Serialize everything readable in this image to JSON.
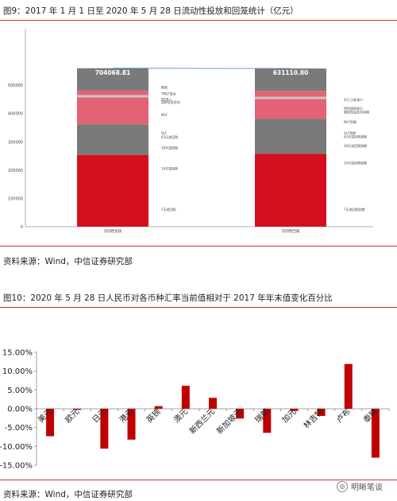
{
  "fig9": {
    "title": "图9：2017 年 1 月 1 日至 2020 年 5 月 28 日流动性投放和回笼统计（亿元）",
    "source": "资料来源：Wind，中信证券研究部"
  },
  "fig10": {
    "title": "图10：2020 年 5 月 28 日人民币对各币种汇率当前值相对于 2017 年年末值变化百分比",
    "source": "资料来源：Wind，中信证券研究部"
  },
  "watermark": {
    "text": "明晰笔谈",
    "icon": "wechat-icon"
  },
  "chart_data": [
    {
      "type": "bar",
      "stacked": true,
      "ylim": [
        0,
        700000
      ],
      "yticks": [
        "0",
        "100000",
        "200000",
        "300000",
        "400000",
        "500000"
      ],
      "ytick_values": [
        0,
        100000,
        200000,
        300000,
        400000,
        500000
      ],
      "categories": [
        "流动性投放",
        "流动性回笼"
      ],
      "totals": [
        "704068.81",
        "631110.80"
      ],
      "total_values": [
        704068.81,
        631110.8
      ],
      "series_colors": [
        "#d4101e",
        "#7a7a7a",
        "#e46275",
        "#c8c8c8",
        "#e46275",
        "#7a7a7a"
      ],
      "segments": [
        [
          254000,
          108000,
          95000,
          8000,
          16000,
          79000
        ],
        [
          258000,
          123000,
          70000,
          8000,
          21000,
          79000
        ]
      ],
      "left_labels": [
        {
          "text": "7天逆回购",
          "y": 60000
        },
        {
          "text": "14天逆回购",
          "y": 205000
        },
        {
          "text": "28天逆回购",
          "y": 278000
        },
        {
          "text": "63天逆回购",
          "y": 316000
        },
        {
          "text": "SLF",
          "y": 330000
        },
        {
          "text": "MLF",
          "y": 395000
        },
        {
          "text": "国库现金定存",
          "y": 440000
        },
        {
          "text": "SD准入",
          "y": 450000
        },
        {
          "text": "TMLF流动",
          "y": 470000
        },
        {
          "text": "降准",
          "y": 492000
        }
      ],
      "right_labels": [
        {
          "text": "7天逆回购到期",
          "y": 60000
        },
        {
          "text": "14天逆回购到期",
          "y": 225000
        },
        {
          "text": "28天逆回购到期",
          "y": 285000
        },
        {
          "text": "63天逆回购到期",
          "y": 318000
        },
        {
          "text": "SLF到期",
          "y": 330000
        },
        {
          "text": "MLF到期",
          "y": 370000
        },
        {
          "text": "国库现金定存到期",
          "y": 405000
        },
        {
          "text": "特别国债发行",
          "y": 417000
        },
        {
          "text": "外汇占款减少",
          "y": 448000
        }
      ]
    },
    {
      "type": "bar",
      "ylim": [
        -15,
        15
      ],
      "yticks": [
        "15.00%",
        "10.00%",
        "5.00%",
        "0.00%",
        "-5.00%",
        "-10.00%",
        "-15.00%"
      ],
      "ytick_values": [
        15,
        10,
        5,
        0,
        -5,
        -10,
        -15
      ],
      "categories": [
        "美元",
        "欧元",
        "日元",
        "港元",
        "英镑",
        "澳元",
        "新西兰元",
        "新加坡元",
        "瑞郎",
        "加元",
        "林吉特",
        "卢布",
        "泰铢"
      ],
      "values": [
        -7.3,
        -0.3,
        -10.6,
        -8.2,
        0.7,
        6.1,
        2.9,
        -2.6,
        -6.4,
        -0.6,
        -1.9,
        11.9,
        -13.0
      ],
      "bar_color": "#c00000"
    }
  ]
}
